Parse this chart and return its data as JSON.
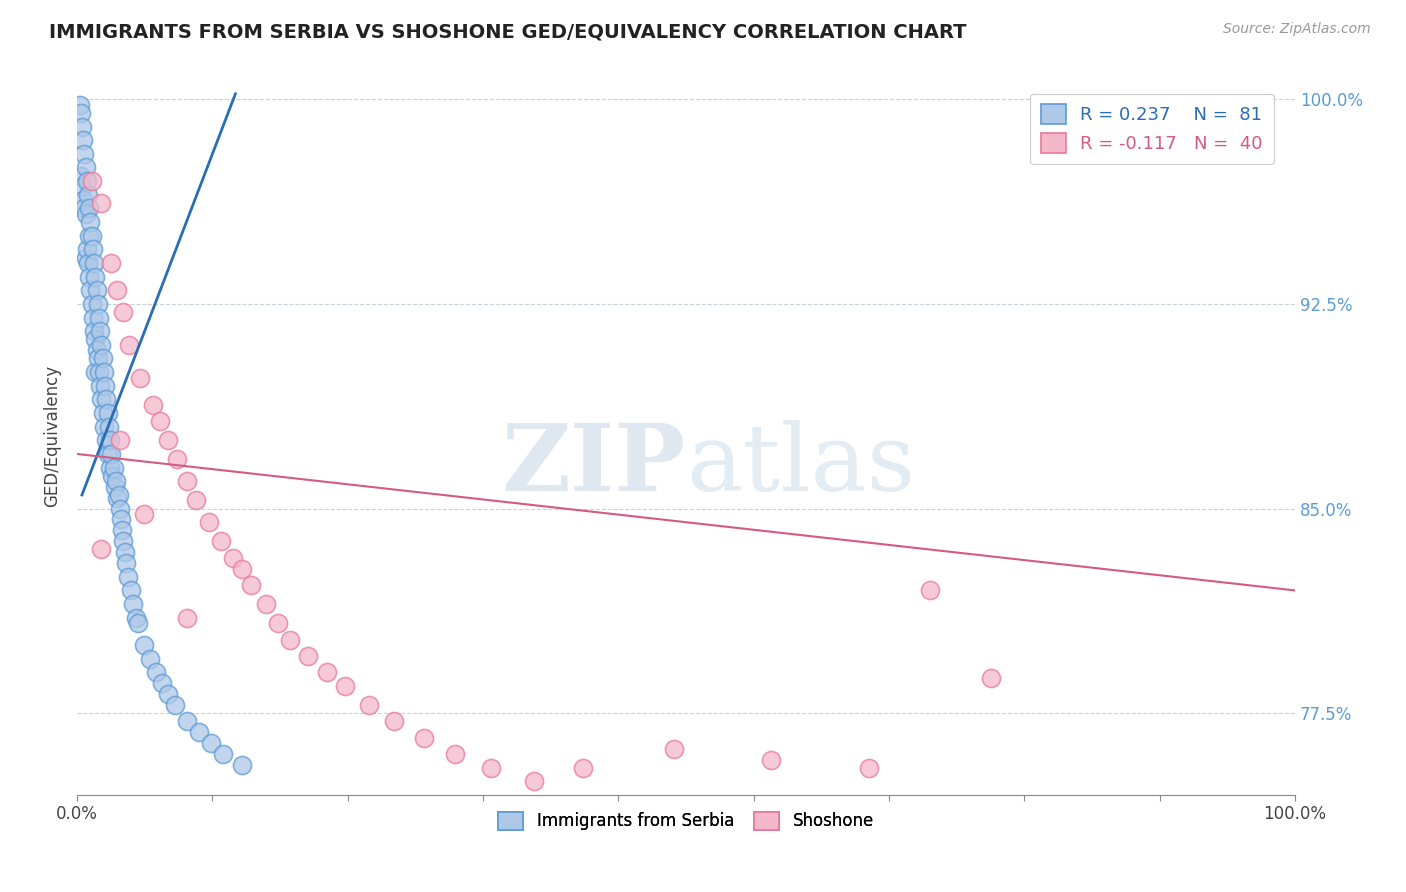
{
  "title": "IMMIGRANTS FROM SERBIA VS SHOSHONE GED/EQUIVALENCY CORRELATION CHART",
  "source_text": "Source: ZipAtlas.com",
  "ylabel": "GED/Equivalency",
  "xlim": [
    0.0,
    1.0
  ],
  "ylim": [
    0.745,
    1.008
  ],
  "yticks": [
    0.775,
    0.85,
    0.925,
    1.0
  ],
  "ytick_labels": [
    "77.5%",
    "85.0%",
    "92.5%",
    "100.0%"
  ],
  "xtick_labels": [
    "0.0%",
    "",
    "",
    "",
    "",
    "",
    "",
    "",
    "",
    "100.0%"
  ],
  "xticks": [
    0.0,
    0.1111,
    0.2222,
    0.3333,
    0.4444,
    0.5556,
    0.6667,
    0.7778,
    0.8889,
    1.0
  ],
  "color_serbia": "#aec8e8",
  "color_shoshone": "#f4b8cb",
  "color_serbia_edge": "#5b9bd5",
  "color_shoshone_edge": "#e8789a",
  "color_serbia_line": "#2a6db5",
  "color_shoshone_line": "#d45b80",
  "color_right_labels": "#5b9bd5",
  "color_grid": "#c8d0d8",
  "watermark_color": "#c5d5e5",
  "background_color": "#ffffff",
  "serbia_x": [
    0.002,
    0.003,
    0.003,
    0.004,
    0.004,
    0.005,
    0.005,
    0.006,
    0.006,
    0.007,
    0.007,
    0.007,
    0.008,
    0.008,
    0.009,
    0.009,
    0.01,
    0.01,
    0.01,
    0.011,
    0.011,
    0.012,
    0.012,
    0.013,
    0.013,
    0.014,
    0.014,
    0.015,
    0.015,
    0.015,
    0.016,
    0.016,
    0.017,
    0.017,
    0.018,
    0.018,
    0.019,
    0.019,
    0.02,
    0.02,
    0.021,
    0.021,
    0.022,
    0.022,
    0.023,
    0.024,
    0.024,
    0.025,
    0.025,
    0.026,
    0.027,
    0.027,
    0.028,
    0.029,
    0.03,
    0.031,
    0.032,
    0.033,
    0.034,
    0.035,
    0.036,
    0.037,
    0.038,
    0.039,
    0.04,
    0.042,
    0.044,
    0.046,
    0.048,
    0.05,
    0.055,
    0.06,
    0.065,
    0.07,
    0.075,
    0.08,
    0.09,
    0.1,
    0.11,
    0.12,
    0.135
  ],
  "serbia_y": [
    0.998,
    0.995,
    0.972,
    0.99,
    0.968,
    0.985,
    0.963,
    0.98,
    0.96,
    0.975,
    0.958,
    0.942,
    0.97,
    0.945,
    0.965,
    0.94,
    0.96,
    0.95,
    0.935,
    0.955,
    0.93,
    0.95,
    0.925,
    0.945,
    0.92,
    0.94,
    0.915,
    0.935,
    0.912,
    0.9,
    0.93,
    0.908,
    0.925,
    0.905,
    0.92,
    0.9,
    0.915,
    0.895,
    0.91,
    0.89,
    0.905,
    0.885,
    0.9,
    0.88,
    0.895,
    0.89,
    0.875,
    0.885,
    0.87,
    0.88,
    0.875,
    0.865,
    0.87,
    0.862,
    0.865,
    0.858,
    0.86,
    0.854,
    0.855,
    0.85,
    0.846,
    0.842,
    0.838,
    0.834,
    0.83,
    0.825,
    0.82,
    0.815,
    0.81,
    0.808,
    0.8,
    0.795,
    0.79,
    0.786,
    0.782,
    0.778,
    0.772,
    0.768,
    0.764,
    0.76,
    0.756
  ],
  "shoshone_x": [
    0.012,
    0.02,
    0.028,
    0.033,
    0.038,
    0.043,
    0.052,
    0.062,
    0.068,
    0.075,
    0.082,
    0.09,
    0.098,
    0.108,
    0.118,
    0.128,
    0.135,
    0.143,
    0.155,
    0.165,
    0.175,
    0.19,
    0.205,
    0.22,
    0.24,
    0.26,
    0.285,
    0.31,
    0.34,
    0.375,
    0.415,
    0.49,
    0.57,
    0.65,
    0.7,
    0.75,
    0.02,
    0.035,
    0.055,
    0.09
  ],
  "shoshone_y": [
    0.97,
    0.962,
    0.94,
    0.93,
    0.922,
    0.91,
    0.898,
    0.888,
    0.882,
    0.875,
    0.868,
    0.86,
    0.853,
    0.845,
    0.838,
    0.832,
    0.828,
    0.822,
    0.815,
    0.808,
    0.802,
    0.796,
    0.79,
    0.785,
    0.778,
    0.772,
    0.766,
    0.76,
    0.755,
    0.75,
    0.755,
    0.762,
    0.758,
    0.755,
    0.82,
    0.788,
    0.835,
    0.875,
    0.848,
    0.81
  ],
  "serbia_trend_x": [
    0.004,
    0.13
  ],
  "serbia_trend_y": [
    0.855,
    1.002
  ],
  "shoshone_trend_x": [
    0.0,
    1.0
  ],
  "shoshone_trend_y": [
    0.87,
    0.82
  ]
}
